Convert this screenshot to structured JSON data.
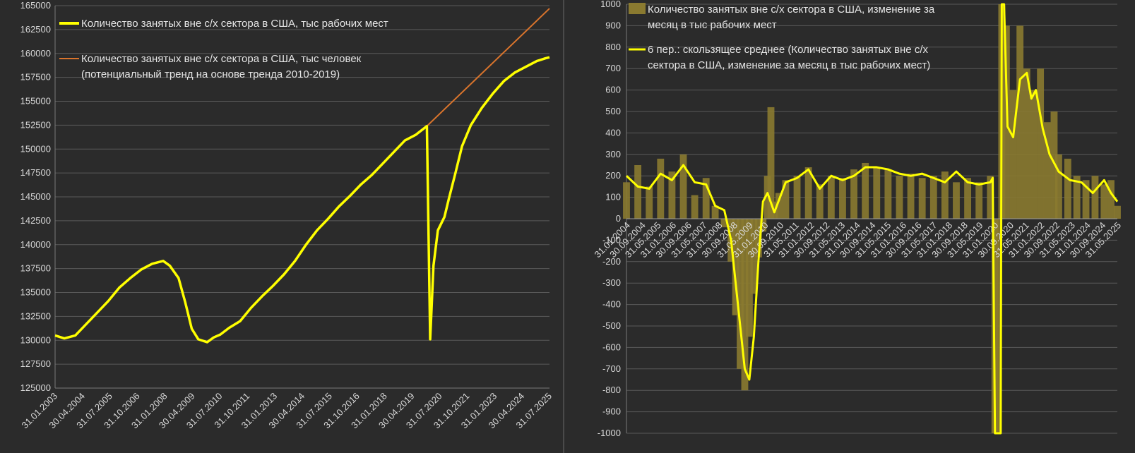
{
  "colors": {
    "background": "#2b2b2b",
    "grid": "#5a5a5a",
    "text": "#d9d9d9",
    "yellow_line": "#ffff00",
    "trend_line": "#d9742c",
    "bars": "#8a7a30"
  },
  "chart_data": [
    {
      "type": "line",
      "title": "",
      "ylim": [
        125000,
        165000
      ],
      "y_ticks": [
        "125000",
        "127500",
        "130000",
        "132500",
        "135000",
        "137500",
        "140000",
        "142500",
        "145000",
        "147500",
        "150000",
        "152500",
        "155000",
        "157500",
        "160000",
        "162500",
        "165000"
      ],
      "x_tick_labels": [
        "31.01.2003",
        "30.04.2004",
        "31.07.2005",
        "31.10.2006",
        "31.01.2008",
        "30.04.2009",
        "31.07.2010",
        "31.10.2011",
        "31.01.2013",
        "30.04.2014",
        "31.07.2015",
        "31.10.2016",
        "31.01.2018",
        "30.04.2019",
        "31.07.2020",
        "31.10.2021",
        "31.01.2023",
        "30.04.2024",
        "31.07.2025"
      ],
      "legend_position": "top-left",
      "series": [
        {
          "name": "Количество занятых вне с/х сектора в США, тыс рабочих мест",
          "x": [
            2003.08,
            2003.5,
            2004,
            2004.5,
            2005,
            2005.5,
            2006,
            2006.5,
            2007,
            2007.5,
            2008,
            2008.3,
            2008.7,
            2009,
            2009.3,
            2009.6,
            2010,
            2010.3,
            2010.6,
            2011,
            2011.5,
            2012,
            2012.5,
            2013,
            2013.5,
            2014,
            2014.5,
            2015,
            2015.5,
            2016,
            2016.5,
            2017,
            2017.5,
            2018,
            2018.5,
            2019,
            2019.5,
            2020,
            2020.15,
            2020.3,
            2020.5,
            2020.8,
            2021,
            2021.3,
            2021.6,
            2022,
            2022.5,
            2023,
            2023.5,
            2024,
            2024.5,
            2025,
            2025.4,
            2025.58
          ],
          "values": [
            130500,
            130200,
            130500,
            131700,
            132900,
            134100,
            135500,
            136500,
            137400,
            138000,
            138300,
            137800,
            136500,
            134000,
            131200,
            130100,
            129800,
            130300,
            130600,
            131300,
            132000,
            133400,
            134600,
            135700,
            136900,
            138300,
            140000,
            141500,
            142700,
            144000,
            145100,
            146300,
            147300,
            148500,
            149700,
            150900,
            151500,
            152400,
            130100,
            137800,
            141500,
            142900,
            144800,
            147500,
            150300,
            152500,
            154300,
            155800,
            157100,
            158000,
            158600,
            159200,
            159500,
            159600
          ]
        },
        {
          "name": "Количество занятых вне с/х сектора в США, тыс человек (потенциальный тренд на основе тренда 2010-2019)",
          "x": [
            2020.0,
            2025.58
          ],
          "values": [
            152400,
            164700
          ]
        }
      ]
    },
    {
      "type": "bar",
      "title": "",
      "ylim": [
        -1000,
        1000
      ],
      "y_ticks": [
        "-1000",
        "-900",
        "-800",
        "-700",
        "-600",
        "-500",
        "-400",
        "-300",
        "-200",
        "-100",
        "0",
        "100",
        "200",
        "300",
        "400",
        "500",
        "600",
        "700",
        "800",
        "900",
        "1000"
      ],
      "x_tick_labels": [
        "31.01.2004",
        "30.09.2004",
        "31.05.2005",
        "31.01.2006",
        "30.09.2006",
        "31.05.2007",
        "31.01.2008",
        "30.09.2008",
        "31.05.2009",
        "31.01.2010",
        "30.09.2010",
        "31.05.2011",
        "31.01.2012",
        "30.09.2012",
        "31.05.2013",
        "31.01.2014",
        "30.09.2014",
        "31.05.2015",
        "31.01.2016",
        "30.09.2016",
        "31.05.2017",
        "31.01.2018",
        "30.09.2018",
        "31.05.2019",
        "31.01.2020",
        "30.09.2020",
        "31.05.2021",
        "31.01.2022",
        "30.09.2022",
        "31.05.2023",
        "31.01.2024",
        "30.09.2024",
        "31.05.2025"
      ],
      "legend_position": "top-left",
      "series": [
        {
          "name": "Количество занятых вне с/х сектора в США, изменение за месяц в тыс рабочих мест",
          "x": [
            2004.0,
            2004.5,
            2005.0,
            2005.5,
            2006.0,
            2006.5,
            2007.0,
            2007.5,
            2007.9,
            2008.3,
            2008.6,
            2008.8,
            2009.0,
            2009.2,
            2009.4,
            2009.6,
            2009.8,
            2010.0,
            2010.2,
            2010.35,
            2010.5,
            2010.7,
            2011.0,
            2011.5,
            2012.0,
            2012.5,
            2013.0,
            2013.5,
            2014.0,
            2014.5,
            2015.0,
            2015.5,
            2016.0,
            2016.5,
            2017.0,
            2017.5,
            2018.0,
            2018.5,
            2019.0,
            2019.5,
            2020.0,
            2020.2,
            2020.35,
            2020.5,
            2020.7,
            2021.0,
            2021.3,
            2021.6,
            2021.9,
            2022.2,
            2022.5,
            2022.8,
            2023.0,
            2023.4,
            2023.8,
            2024.2,
            2024.6,
            2025.0,
            2025.3,
            2025.58
          ],
          "values": [
            170,
            250,
            150,
            280,
            220,
            300,
            110,
            190,
            60,
            -40,
            -200,
            -450,
            -700,
            -800,
            -550,
            -350,
            -180,
            -60,
            200,
            520,
            80,
            120,
            180,
            200,
            240,
            160,
            200,
            190,
            230,
            260,
            240,
            230,
            200,
            210,
            190,
            200,
            220,
            170,
            190,
            170,
            200,
            -1000,
            -1000,
            1000,
            900,
            600,
            900,
            700,
            600,
            700,
            450,
            500,
            300,
            280,
            200,
            180,
            200,
            160,
            180,
            60
          ],
          "color": "#8a7a30"
        },
        {
          "name": "6 пер.: скользящее среднее (Количество занятых вне с/х сектора в США, изменение за месяц в тыс рабочих мест)",
          "x": [
            2004.0,
            2004.5,
            2005.0,
            2005.5,
            2006.0,
            2006.5,
            2007.0,
            2007.5,
            2007.9,
            2008.3,
            2008.6,
            2008.8,
            2009.0,
            2009.2,
            2009.4,
            2009.6,
            2009.8,
            2010.0,
            2010.2,
            2010.5,
            2011.0,
            2011.5,
            2012.0,
            2012.5,
            2013.0,
            2013.5,
            2014.0,
            2014.5,
            2015.0,
            2015.5,
            2016.0,
            2016.5,
            2017.0,
            2017.5,
            2018.0,
            2018.5,
            2019.0,
            2019.5,
            2020.0,
            2020.1,
            2020.2,
            2020.3,
            2020.45,
            2020.5,
            2020.6,
            2020.75,
            2021.0,
            2021.3,
            2021.6,
            2021.8,
            2022.0,
            2022.3,
            2022.6,
            2023.0,
            2023.5,
            2024.0,
            2024.5,
            2025.0,
            2025.3,
            2025.58
          ],
          "values": [
            200,
            150,
            140,
            210,
            180,
            250,
            170,
            160,
            60,
            40,
            -100,
            -300,
            -500,
            -700,
            -750,
            -550,
            -200,
            80,
            120,
            30,
            170,
            190,
            230,
            140,
            200,
            180,
            200,
            240,
            240,
            230,
            210,
            200,
            210,
            190,
            170,
            220,
            170,
            160,
            170,
            190,
            -1000,
            -1000,
            -1000,
            1000,
            1000,
            430,
            380,
            650,
            680,
            560,
            600,
            420,
            300,
            220,
            180,
            170,
            120,
            180,
            120,
            80
          ],
          "color": "#ffff00"
        }
      ]
    }
  ]
}
